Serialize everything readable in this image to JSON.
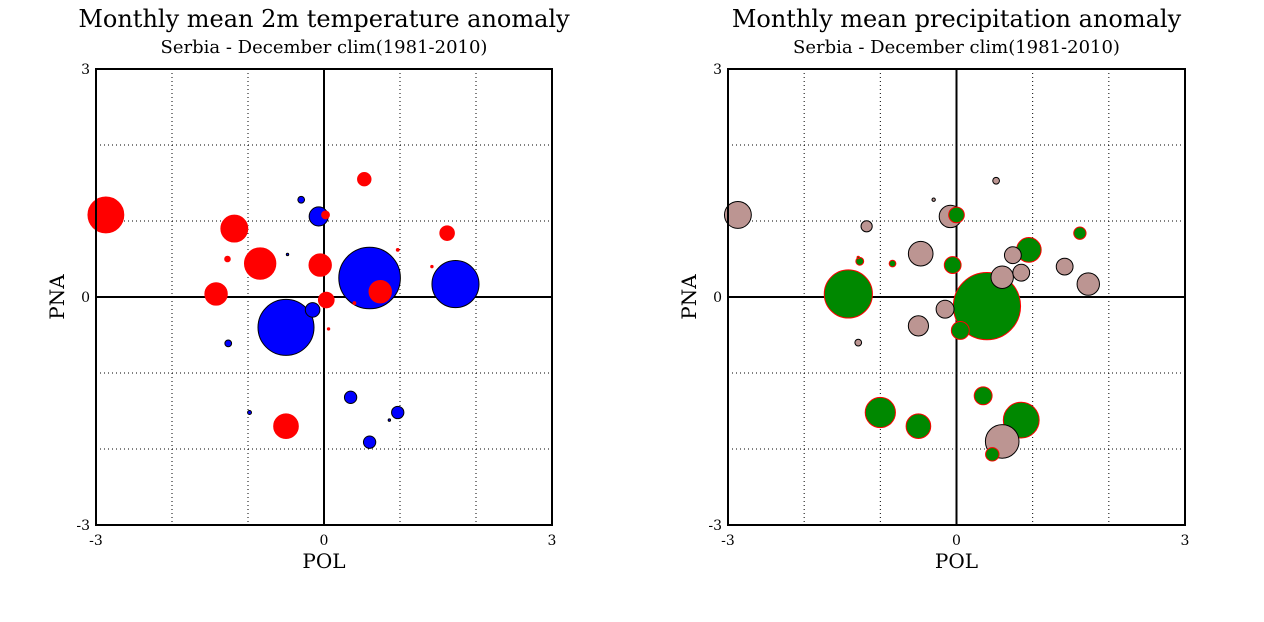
{
  "chart_data": [
    {
      "type": "scatter",
      "title": "Monthly mean 2m temperature anomaly",
      "subtitle": "Serbia - December  clim(1981-2010)",
      "xlabel": "POL",
      "ylabel": "PNA",
      "xlim": [
        -3,
        3
      ],
      "ylim": [
        -3,
        3
      ],
      "x_tick_labels": [
        "-3",
        "0",
        "3"
      ],
      "y_tick_labels": [
        "3",
        "0",
        "-3"
      ],
      "grid": true,
      "legend": "none",
      "colors": {
        "positive": "#ff0000",
        "negative": "#0000ff"
      },
      "points": [
        {
          "x": -2.87,
          "y": 1.08,
          "anomaly": 3.2
        },
        {
          "x": -1.18,
          "y": 0.9,
          "anomaly": 2.4
        },
        {
          "x": -0.84,
          "y": 0.44,
          "anomaly": 2.8
        },
        {
          "x": -1.42,
          "y": 0.04,
          "anomaly": 2.0
        },
        {
          "x": -1.27,
          "y": 0.5,
          "anomaly": 0.5
        },
        {
          "x": 0.53,
          "y": 1.55,
          "anomaly": 1.2
        },
        {
          "x": 1.62,
          "y": 0.84,
          "anomaly": 1.3
        },
        {
          "x": -0.05,
          "y": 0.42,
          "anomaly": 2.0
        },
        {
          "x": 0.02,
          "y": 1.08,
          "anomaly": 0.7
        },
        {
          "x": 0.74,
          "y": 0.07,
          "anomaly": 2.0
        },
        {
          "x": 0.03,
          "y": -0.04,
          "anomaly": 1.4
        },
        {
          "x": -0.5,
          "y": -1.7,
          "anomaly": 2.2
        },
        {
          "x": 0.97,
          "y": 0.62,
          "anomaly": 0.25
        },
        {
          "x": 1.42,
          "y": 0.4,
          "anomaly": 0.2
        },
        {
          "x": 0.06,
          "y": -0.42,
          "anomaly": 0.2
        },
        {
          "x": 0.4,
          "y": -0.08,
          "anomaly": 0.25
        },
        {
          "x": 0.6,
          "y": 0.25,
          "anomaly": -5.5
        },
        {
          "x": 1.73,
          "y": 0.17,
          "anomaly": -4.2
        },
        {
          "x": -0.5,
          "y": -0.4,
          "anomaly": -5.0
        },
        {
          "x": -0.07,
          "y": 1.06,
          "anomaly": -1.7
        },
        {
          "x": -0.3,
          "y": 1.28,
          "anomaly": -0.6
        },
        {
          "x": -0.15,
          "y": -0.17,
          "anomaly": -1.3
        },
        {
          "x": -1.26,
          "y": -0.61,
          "anomaly": -0.6
        },
        {
          "x": 0.35,
          "y": -1.32,
          "anomaly": -1.1
        },
        {
          "x": 0.97,
          "y": -1.52,
          "anomaly": -1.1
        },
        {
          "x": 0.6,
          "y": -1.91,
          "anomaly": -1.1
        },
        {
          "x": -0.98,
          "y": -1.52,
          "anomaly": -0.35
        },
        {
          "x": -0.48,
          "y": 0.56,
          "anomaly": -0.15
        },
        {
          "x": 0.86,
          "y": -1.62,
          "anomaly": -0.2
        }
      ]
    },
    {
      "type": "scatter",
      "title": "Monthly mean precipitation anomaly",
      "subtitle": "Serbia - December  clim(1981-2010)",
      "xlabel": "POL",
      "ylabel": "PNA",
      "xlim": [
        -3,
        3
      ],
      "ylim": [
        -3,
        3
      ],
      "x_tick_labels": [
        "-3",
        "0",
        "3"
      ],
      "y_tick_labels": [
        "3",
        "0",
        "-3"
      ],
      "grid": true,
      "legend": "none",
      "colors": {
        "positive": "#008800",
        "negative": "#bc9592",
        "positive_edge": "#ff0000"
      },
      "points": [
        {
          "x": -2.87,
          "y": 1.08,
          "anomaly": -2.4
        },
        {
          "x": -1.18,
          "y": 0.93,
          "anomaly": -1.0
        },
        {
          "x": -0.84,
          "y": 0.44,
          "anomaly": 0.6
        },
        {
          "x": -0.47,
          "y": 0.57,
          "anomaly": -2.2
        },
        {
          "x": -0.3,
          "y": 1.28,
          "anomaly": -0.3
        },
        {
          "x": -0.08,
          "y": 1.06,
          "anomaly": -2.0
        },
        {
          "x": 0.0,
          "y": 1.08,
          "anomaly": 1.4
        },
        {
          "x": -0.05,
          "y": 0.42,
          "anomaly": 1.5
        },
        {
          "x": 0.52,
          "y": 1.53,
          "anomaly": -0.6
        },
        {
          "x": 1.62,
          "y": 0.84,
          "anomaly": 1.1
        },
        {
          "x": 0.95,
          "y": 0.62,
          "anomaly": 2.2
        },
        {
          "x": 0.74,
          "y": 0.55,
          "anomaly": -1.5
        },
        {
          "x": 0.85,
          "y": 0.32,
          "anomaly": -1.5
        },
        {
          "x": 0.6,
          "y": 0.26,
          "anomaly": -2.0
        },
        {
          "x": 1.42,
          "y": 0.4,
          "anomaly": -1.5
        },
        {
          "x": 1.73,
          "y": 0.17,
          "anomaly": -2.0
        },
        {
          "x": -1.42,
          "y": 0.04,
          "anomaly": 4.3
        },
        {
          "x": -1.27,
          "y": 0.47,
          "anomaly": 0.7
        },
        {
          "x": -1.29,
          "y": 0.52,
          "anomaly": 0.15
        },
        {
          "x": 0.4,
          "y": -0.12,
          "anomaly": 6.0
        },
        {
          "x": -0.15,
          "y": -0.16,
          "anomaly": -1.6
        },
        {
          "x": -0.5,
          "y": -0.38,
          "anomaly": -1.8
        },
        {
          "x": 0.05,
          "y": -0.44,
          "anomaly": 1.6
        },
        {
          "x": -1.29,
          "y": -0.6,
          "anomaly": -0.6
        },
        {
          "x": 0.35,
          "y": -1.3,
          "anomaly": 1.6
        },
        {
          "x": -1.0,
          "y": -1.52,
          "anomaly": 2.7
        },
        {
          "x": -0.5,
          "y": -1.7,
          "anomaly": 2.2
        },
        {
          "x": 0.85,
          "y": -1.62,
          "anomaly": 3.2
        },
        {
          "x": 0.6,
          "y": -1.9,
          "anomaly": -3.0
        },
        {
          "x": 0.47,
          "y": -2.07,
          "anomaly": 1.2
        }
      ]
    }
  ]
}
